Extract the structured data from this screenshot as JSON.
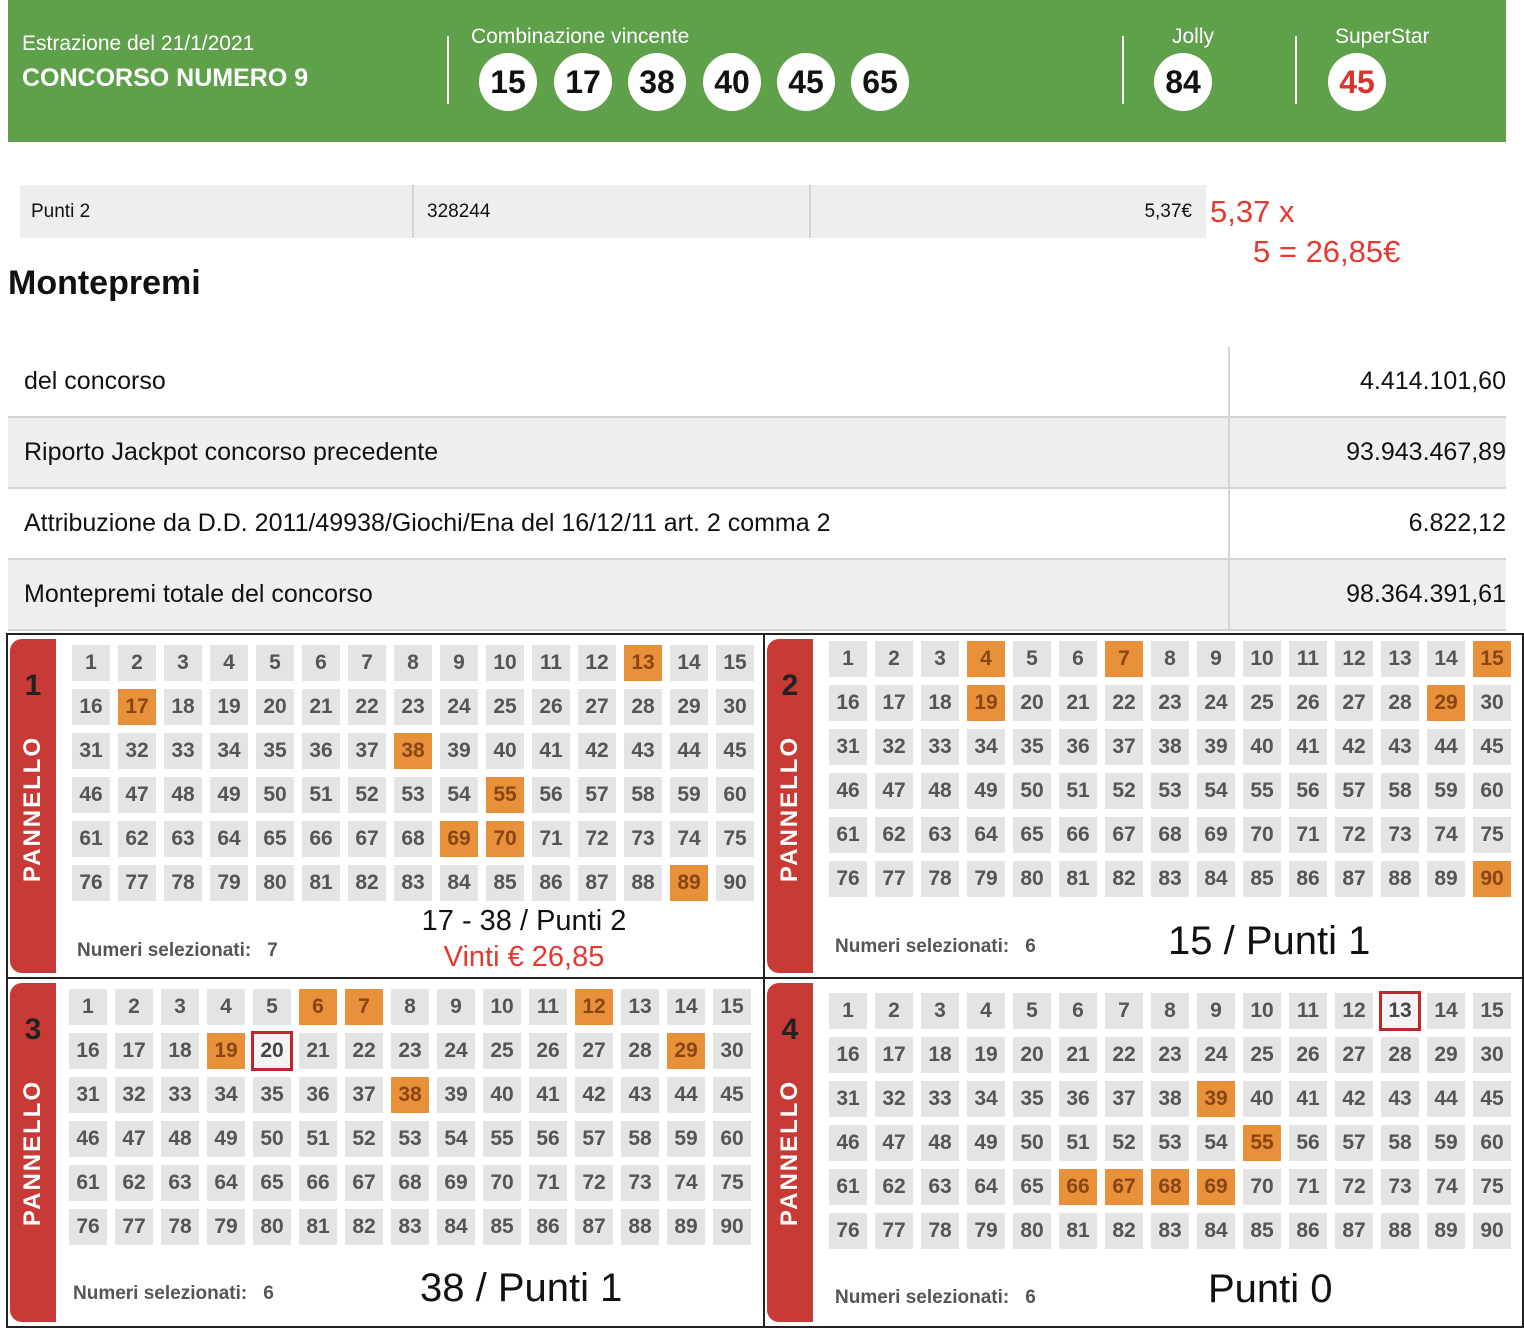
{
  "header": {
    "date_label": "Estrazione del 21/1/2021",
    "contest_label": "CONCORSO NUMERO 9",
    "winning_label": "Combinazione vincente",
    "winning_numbers": [
      "15",
      "17",
      "38",
      "40",
      "45",
      "65"
    ],
    "jolly_label": "Jolly",
    "jolly_number": "84",
    "superstar_label": "SuperStar",
    "superstar_number": "45",
    "superstar_color": "#d9342b",
    "header_color": "#5fa04a"
  },
  "points_row": {
    "label": "Punti 2",
    "winners": "328244",
    "prize": "5,37€"
  },
  "calc_note": {
    "line1": "5,37 x",
    "line2": "5 = 26,85€",
    "color": "#e5392f"
  },
  "montepremi": {
    "title": "Montepremi",
    "rows": [
      {
        "label": "del concorso",
        "value": "4.414.101,60"
      },
      {
        "label": "Riporto Jackpot concorso precedente",
        "value": "93.943.467,89"
      },
      {
        "label": "Attribuzione da D.D. 2011/49938/Giochi/Ena del 16/12/11 art. 2 comma 2",
        "value": "6.822,12"
      },
      {
        "label": "Montepremi totale del concorso",
        "value": "98.364.391,61"
      }
    ]
  },
  "panels": [
    {
      "number": "1",
      "tab_text": "PANNELLO",
      "selected": [
        13,
        17,
        38,
        55,
        69,
        70,
        89
      ],
      "boxed": [],
      "selected_label": "Numeri selezionati:",
      "selected_count": "7",
      "note_line1": "17 - 38 / Punti 2",
      "note_line2": "Vinti € 26,85"
    },
    {
      "number": "2",
      "tab_text": "PANNELLO",
      "selected": [
        4,
        7,
        15,
        19,
        29,
        90
      ],
      "boxed": [],
      "selected_label": "Numeri selezionati:",
      "selected_count": "6",
      "note": "15 / Punti 1"
    },
    {
      "number": "3",
      "tab_text": "PANNELLO",
      "selected": [
        6,
        7,
        12,
        19,
        29,
        38
      ],
      "boxed": [
        20
      ],
      "selected_label": "Numeri selezionati:",
      "selected_count": "6",
      "note": "38 / Punti 1"
    },
    {
      "number": "4",
      "tab_text": "PANNELLO",
      "selected": [
        39,
        55,
        66,
        67,
        68,
        69
      ],
      "boxed": [
        13
      ],
      "selected_label": "Numeri selezionati:",
      "selected_count": "6",
      "note": "Punti 0"
    }
  ],
  "colors": {
    "selected_cell": "#e8913a",
    "cell": "#e4e4e4",
    "panel_tab": "#c73a36",
    "box_outline": "#c0262d"
  }
}
